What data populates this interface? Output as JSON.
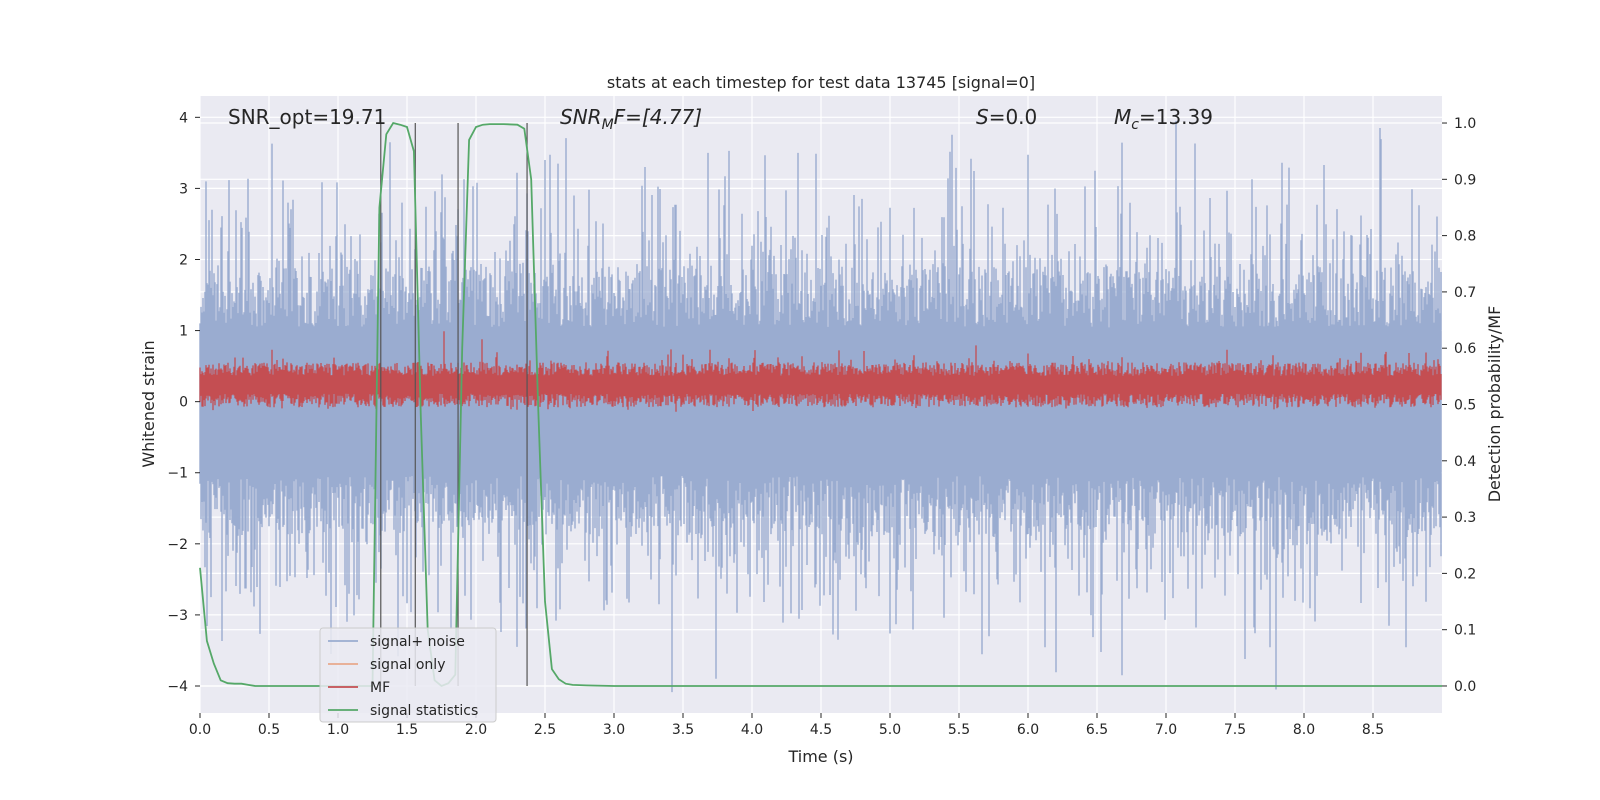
{
  "chart_data": {
    "type": "line",
    "title": "stats at each timestep for test data 13745 [signal=0]",
    "xlabel": "Time (s)",
    "ylabel": "Whitened strain",
    "y2label": "Detection probability/MF",
    "xlim": [
      0.0,
      9.0
    ],
    "ylim": [
      -4.38,
      4.3
    ],
    "y2lim": [
      -0.048,
      1.048
    ],
    "x_ticks": [
      0.0,
      0.5,
      1.0,
      1.5,
      2.0,
      2.5,
      3.0,
      3.5,
      4.0,
      4.5,
      5.0,
      5.5,
      6.0,
      6.5,
      7.0,
      7.5,
      8.0,
      8.5
    ],
    "x_tick_labels": [
      "0.0",
      "0.5",
      "1.0",
      "1.5",
      "2.0",
      "2.5",
      "3.0",
      "3.5",
      "4.0",
      "4.5",
      "5.0",
      "5.5",
      "6.0",
      "6.5",
      "7.0",
      "7.5",
      "8.0",
      "8.5"
    ],
    "y_ticks": [
      4,
      3,
      2,
      1,
      0,
      -1,
      -2,
      -3,
      -4
    ],
    "y_tick_labels": [
      "4",
      "3",
      "2",
      "1",
      "0",
      "−1",
      "−2",
      "−3",
      "−4"
    ],
    "y2_ticks": [
      1.0,
      0.9,
      0.8,
      0.7,
      0.6,
      0.5,
      0.4,
      0.3,
      0.2,
      0.1,
      0.0
    ],
    "y2_tick_labels": [
      "1.0",
      "0.9",
      "0.8",
      "0.7",
      "0.6",
      "0.5",
      "0.4",
      "0.3",
      "0.2",
      "0.1",
      "0.0"
    ],
    "grid": true,
    "legend_position": "lower-left",
    "annotations": {
      "snr_opt": "SNR_opt=19.71",
      "snr_mf_main": "SNR",
      "snr_mf_sub": "M",
      "snr_mf_rest": "F=[4.77]",
      "s_main": "S",
      "s_rest": "=0.0",
      "mc_main": "M",
      "mc_sub": "c",
      "mc_rest": "=13.39"
    },
    "vertical_lines_x": [
      1.31,
      1.56,
      1.87,
      2.37
    ],
    "series": [
      {
        "name": "signal+ noise",
        "color": "#9aacd0",
        "axis": "left",
        "sample_rate": 512,
        "envelope_upper": 1.9,
        "envelope_lower": -1.9,
        "peaks": [
          [
            0.52,
            3.63
          ],
          [
            1.38,
            3.65
          ],
          [
            2.3,
            3.22
          ],
          [
            2.5,
            3.4
          ],
          [
            7.07,
            3.95
          ],
          [
            8.55,
            3.85
          ],
          [
            3.68,
            3.5
          ],
          [
            4.33,
            3.5
          ],
          [
            1.82,
            -3.2
          ],
          [
            2.3,
            -3.45
          ],
          [
            7.8,
            -4.05
          ],
          [
            6.68,
            -3.85
          ],
          [
            4.62,
            -3.35
          ],
          [
            5.72,
            -3.3
          ],
          [
            0.95,
            -3.55
          ],
          [
            0.08,
            -2.75
          ]
        ]
      },
      {
        "name": "signal only",
        "color": "#e8a98c",
        "axis": "left",
        "values": []
      },
      {
        "name": "MF",
        "color": "#c44e52",
        "axis": "right",
        "sample_rate": 512,
        "baseline": 0.535,
        "amplitude": 0.04,
        "peaks": [
          [
            1.77,
            0.63
          ],
          [
            2.04,
            0.616
          ],
          [
            5.62,
            0.605
          ]
        ]
      },
      {
        "name": "signal statistics",
        "color": "#55a868",
        "axis": "right",
        "x": [
          0.0,
          0.05,
          0.1,
          0.15,
          0.2,
          0.25,
          0.3,
          0.35,
          0.4,
          0.5,
          0.8,
          1.0,
          1.25,
          1.3,
          1.35,
          1.4,
          1.45,
          1.5,
          1.55,
          1.6,
          1.65,
          1.7,
          1.75,
          1.8,
          1.85,
          1.9,
          1.95,
          2.0,
          2.05,
          2.1,
          2.2,
          2.3,
          2.35,
          2.4,
          2.45,
          2.5,
          2.55,
          2.6,
          2.65,
          2.7,
          2.8,
          3.0,
          9.0
        ],
        "values": [
          0.21,
          0.08,
          0.04,
          0.01,
          0.005,
          0.004,
          0.004,
          0.002,
          0.0,
          0.0,
          0.0,
          0.0,
          0.0,
          0.85,
          0.98,
          1.0,
          0.997,
          0.993,
          0.95,
          0.48,
          0.1,
          0.01,
          0.0,
          0.005,
          0.02,
          0.6,
          0.97,
          0.993,
          0.997,
          0.998,
          0.998,
          0.997,
          0.99,
          0.9,
          0.5,
          0.15,
          0.03,
          0.012,
          0.004,
          0.002,
          0.001,
          0.0,
          0.0
        ]
      }
    ]
  }
}
